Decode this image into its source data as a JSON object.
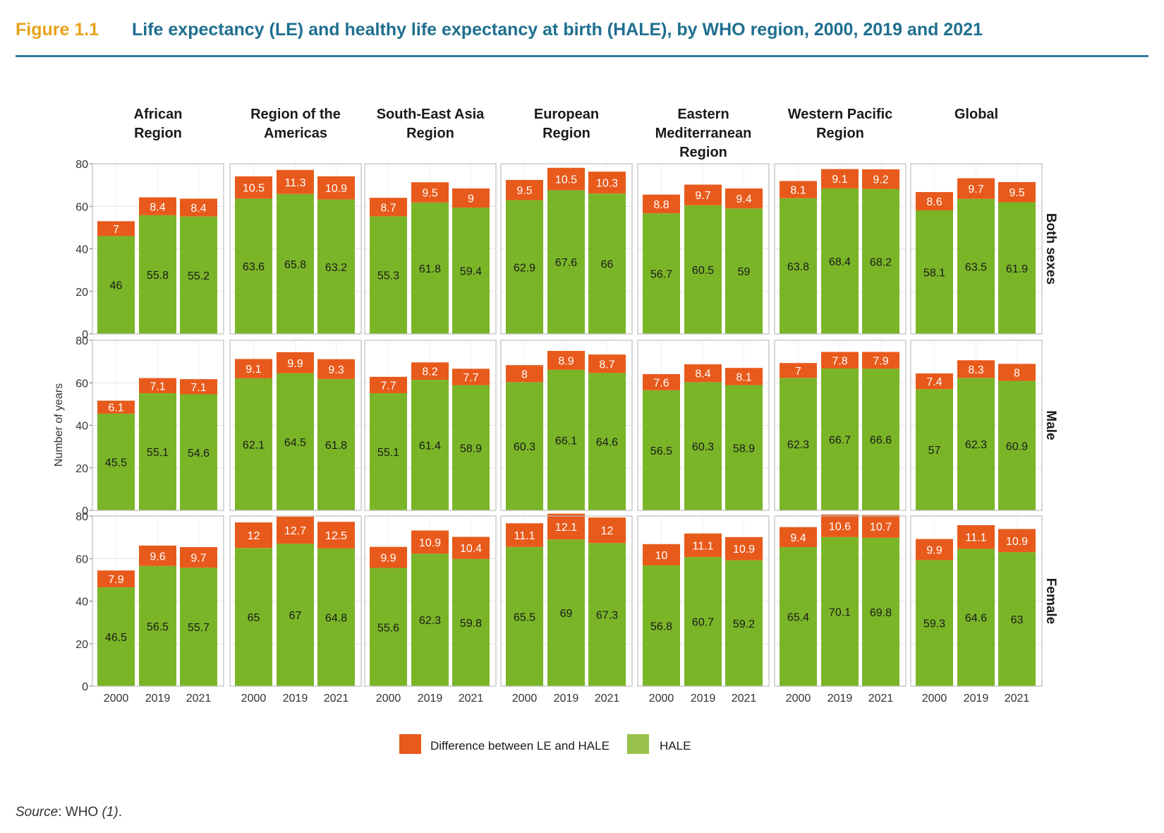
{
  "figure": {
    "label": "Figure 1.1",
    "title": "Life expectancy (LE) and healthy life expectancy at birth (HALE), by WHO region, 2000, 2019 and 2021",
    "source_label": "Source",
    "source_text": ": WHO ",
    "source_ref": "(1)",
    "source_end": "."
  },
  "colors": {
    "hale": "#7ab528",
    "diff": "#e85a1b",
    "legend_hale": "#99c24d",
    "grid": "#e4e4e4",
    "frame": "#bdbdbd"
  },
  "chart_data": {
    "type": "bar",
    "stacked": true,
    "ylabel": "Number of years",
    "ylim": [
      0,
      80
    ],
    "yticks": [
      0,
      20,
      40,
      60,
      80
    ],
    "categories": [
      "2000",
      "2019",
      "2021"
    ],
    "legend": [
      "Difference between LE and HALE",
      "HALE"
    ],
    "legend_position": "bottom",
    "regions": [
      {
        "title": [
          "African",
          "Region"
        ]
      },
      {
        "title": [
          "Region of the",
          "Americas"
        ]
      },
      {
        "title": [
          "South-East Asia",
          "Region"
        ]
      },
      {
        "title": [
          "European",
          "Region"
        ]
      },
      {
        "title": [
          "Eastern",
          "Mediterranean",
          "Region"
        ]
      },
      {
        "title": [
          "Western Pacific",
          "Region"
        ]
      },
      {
        "title": [
          "Global"
        ]
      }
    ],
    "rows": [
      {
        "label": "Both sexes",
        "hale": [
          [
            46,
            55.8,
            55.2
          ],
          [
            63.6,
            65.8,
            63.2
          ],
          [
            55.3,
            61.8,
            59.4
          ],
          [
            62.9,
            67.6,
            66
          ],
          [
            56.7,
            60.5,
            59
          ],
          [
            63.8,
            68.4,
            68.2
          ],
          [
            58.1,
            63.5,
            61.9
          ]
        ],
        "diff": [
          [
            7,
            8.4,
            8.4
          ],
          [
            10.5,
            11.3,
            10.9
          ],
          [
            8.7,
            9.5,
            9
          ],
          [
            9.5,
            10.5,
            10.3
          ],
          [
            8.8,
            9.7,
            9.4
          ],
          [
            8.1,
            9.1,
            9.2
          ],
          [
            8.6,
            9.7,
            9.5
          ]
        ]
      },
      {
        "label": "Male",
        "hale": [
          [
            45.5,
            55.1,
            54.6
          ],
          [
            62.1,
            64.5,
            61.8
          ],
          [
            55.1,
            61.4,
            58.9
          ],
          [
            60.3,
            66.1,
            64.6
          ],
          [
            56.5,
            60.3,
            58.9
          ],
          [
            62.3,
            66.7,
            66.6
          ],
          [
            57,
            62.3,
            60.9
          ]
        ],
        "diff": [
          [
            6.1,
            7.1,
            7.1
          ],
          [
            9.1,
            9.9,
            9.3
          ],
          [
            7.7,
            8.2,
            7.7
          ],
          [
            8,
            8.9,
            8.7
          ],
          [
            7.6,
            8.4,
            8.1
          ],
          [
            7,
            7.8,
            7.9
          ],
          [
            7.4,
            8.3,
            8
          ]
        ]
      },
      {
        "label": "Female",
        "hale": [
          [
            46.5,
            56.5,
            55.7
          ],
          [
            65,
            67,
            64.8
          ],
          [
            55.6,
            62.3,
            59.8
          ],
          [
            65.5,
            69,
            67.3
          ],
          [
            56.8,
            60.7,
            59.2
          ],
          [
            65.4,
            70.1,
            69.8
          ],
          [
            59.3,
            64.6,
            63
          ]
        ],
        "diff": [
          [
            7.9,
            9.6,
            9.7
          ],
          [
            12,
            12.7,
            12.5
          ],
          [
            9.9,
            10.9,
            10.4
          ],
          [
            11.1,
            12.1,
            12
          ],
          [
            10,
            11.1,
            10.9
          ],
          [
            9.4,
            10.6,
            10.7
          ],
          [
            9.9,
            11.1,
            10.9
          ]
        ]
      }
    ]
  }
}
